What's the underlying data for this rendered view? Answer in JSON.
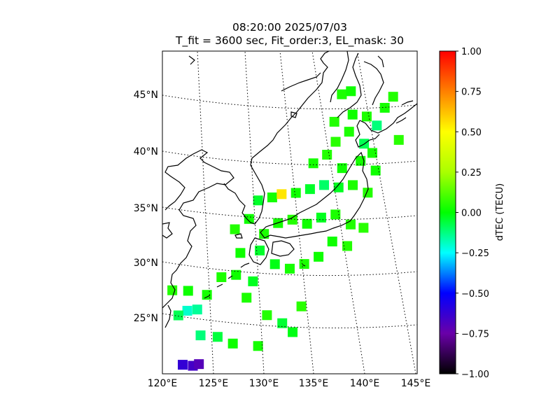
{
  "title": {
    "line1": "08:20:00 2025/07/03",
    "line2": "T_fit = 3600 sec, Fit_order:3, EL_mask: 30"
  },
  "map": {
    "lon_range": [
      120,
      145
    ],
    "lat_range": [
      20,
      49
    ],
    "lat_labels": [
      "25°N",
      "30°N",
      "35°N",
      "40°N",
      "45°N"
    ],
    "lon_labels": [
      "120°E",
      "125°E",
      "130°E",
      "135°E",
      "140°E",
      "145°E"
    ],
    "graticule_style": "dotted"
  },
  "colorbar": {
    "label": "dTEC (TECU)",
    "vmin": -1.0,
    "vmax": 1.0,
    "ticks": [
      "1.00",
      "0.75",
      "0.50",
      "0.25",
      "0.00",
      "−0.25",
      "−0.50",
      "−0.75",
      "−1.00"
    ],
    "colormap": [
      "#000000",
      "#6a00a8",
      "#0000ff",
      "#00ffff",
      "#00ff00",
      "#ffff00",
      "#ff8000",
      "#ff0000"
    ]
  },
  "chart_data": {
    "type": "heatmap",
    "variable": "dTEC",
    "unit": "TECU",
    "points": [
      {
        "lon": 122,
        "lat": 21.0,
        "v": -0.62
      },
      {
        "lon": 123,
        "lat": 21.0,
        "v": -0.66
      },
      {
        "lon": 123.6,
        "lat": 21.2,
        "v": -0.7
      },
      {
        "lon": 122.5,
        "lat": 25.9,
        "v": -0.2
      },
      {
        "lon": 123.5,
        "lat": 26.1,
        "v": -0.15
      },
      {
        "lon": 121.6,
        "lat": 25.4,
        "v": -0.08
      },
      {
        "lon": 123.8,
        "lat": 23.8,
        "v": -0.12
      },
      {
        "lon": 125.5,
        "lat": 23.8,
        "v": -0.06
      },
      {
        "lon": 127,
        "lat": 23.3,
        "v": 0.02
      },
      {
        "lon": 121,
        "lat": 27.6,
        "v": 0.05
      },
      {
        "lon": 122.6,
        "lat": 27.7,
        "v": 0.02
      },
      {
        "lon": 124.5,
        "lat": 27.5,
        "v": 0.03
      },
      {
        "lon": 126,
        "lat": 29.2,
        "v": 0.04
      },
      {
        "lon": 127.5,
        "lat": 29.5,
        "v": 0.02
      },
      {
        "lon": 129.2,
        "lat": 29.0,
        "v": -0.03
      },
      {
        "lon": 128.5,
        "lat": 27.5,
        "v": 0.04
      },
      {
        "lon": 130.5,
        "lat": 26.0,
        "v": 0.05
      },
      {
        "lon": 132,
        "lat": 25.3,
        "v": -0.05
      },
      {
        "lon": 134,
        "lat": 26.8,
        "v": 0.06
      },
      {
        "lon": 133,
        "lat": 24.5,
        "v": -0.02
      },
      {
        "lon": 129.5,
        "lat": 23.2,
        "v": 0.03
      },
      {
        "lon": 128,
        "lat": 31.5,
        "v": 0.02
      },
      {
        "lon": 130,
        "lat": 31.8,
        "v": -0.04
      },
      {
        "lon": 131.5,
        "lat": 30.6,
        "v": -0.02
      },
      {
        "lon": 133,
        "lat": 30.2,
        "v": 0.03
      },
      {
        "lon": 134.5,
        "lat": 30.6,
        "v": 0.04
      },
      {
        "lon": 136,
        "lat": 31.2,
        "v": 0.02
      },
      {
        "lon": 127.5,
        "lat": 33.6,
        "v": 0.05
      },
      {
        "lon": 129,
        "lat": 34.6,
        "v": 0.02
      },
      {
        "lon": 130.5,
        "lat": 33.3,
        "v": 0.04
      },
      {
        "lon": 132,
        "lat": 34.3,
        "v": 0.03
      },
      {
        "lon": 133.5,
        "lat": 34.6,
        "v": 0.05
      },
      {
        "lon": 135,
        "lat": 34.2,
        "v": 0.02
      },
      {
        "lon": 136.5,
        "lat": 34.7,
        "v": -0.03
      },
      {
        "lon": 138,
        "lat": 34.9,
        "v": 0.04
      },
      {
        "lon": 139.5,
        "lat": 33.9,
        "v": 0.05
      },
      {
        "lon": 140.8,
        "lat": 33.5,
        "v": 0.06
      },
      {
        "lon": 137.5,
        "lat": 32.5,
        "v": 0.02
      },
      {
        "lon": 139,
        "lat": 32.0,
        "v": 0.05
      },
      {
        "lon": 130,
        "lat": 36.3,
        "v": -0.04
      },
      {
        "lon": 131.5,
        "lat": 36.6,
        "v": 0.03
      },
      {
        "lon": 132.5,
        "lat": 36.9,
        "v": 0.55
      },
      {
        "lon": 134,
        "lat": 37.0,
        "v": 0.02
      },
      {
        "lon": 135.5,
        "lat": 37.3,
        "v": -0.04
      },
      {
        "lon": 137,
        "lat": 37.6,
        "v": -0.1
      },
      {
        "lon": 138.5,
        "lat": 37.3,
        "v": -0.03
      },
      {
        "lon": 140,
        "lat": 37.4,
        "v": 0.04
      },
      {
        "lon": 141.5,
        "lat": 36.6,
        "v": 0.05
      },
      {
        "lon": 142.5,
        "lat": 38.5,
        "v": 0.02
      },
      {
        "lon": 141,
        "lat": 39.5,
        "v": 0.03
      },
      {
        "lon": 139,
        "lat": 39.0,
        "v": 0.02
      },
      {
        "lon": 137.5,
        "lat": 40.3,
        "v": 0.05
      },
      {
        "lon": 136,
        "lat": 39.6,
        "v": 0.03
      },
      {
        "lon": 138.5,
        "lat": 41.4,
        "v": 0.06
      },
      {
        "lon": 140,
        "lat": 42.2,
        "v": 0.04
      },
      {
        "lon": 141.5,
        "lat": 41.0,
        "v": -0.08
      },
      {
        "lon": 142.3,
        "lat": 40.1,
        "v": 0.03
      },
      {
        "lon": 138.5,
        "lat": 43.2,
        "v": 0.05
      },
      {
        "lon": 140.5,
        "lat": 43.7,
        "v": 0.02
      },
      {
        "lon": 142,
        "lat": 43.4,
        "v": 0.04
      },
      {
        "lon": 143,
        "lat": 42.5,
        "v": -0.12
      },
      {
        "lon": 144,
        "lat": 44.0,
        "v": 0.03
      },
      {
        "lon": 145,
        "lat": 44.9,
        "v": 0.05
      },
      {
        "lon": 139.5,
        "lat": 45.6,
        "v": 0.04
      },
      {
        "lon": 140.5,
        "lat": 45.8,
        "v": 0.02
      },
      {
        "lon": 145.2,
        "lat": 41.0,
        "v": 0.06
      }
    ]
  }
}
